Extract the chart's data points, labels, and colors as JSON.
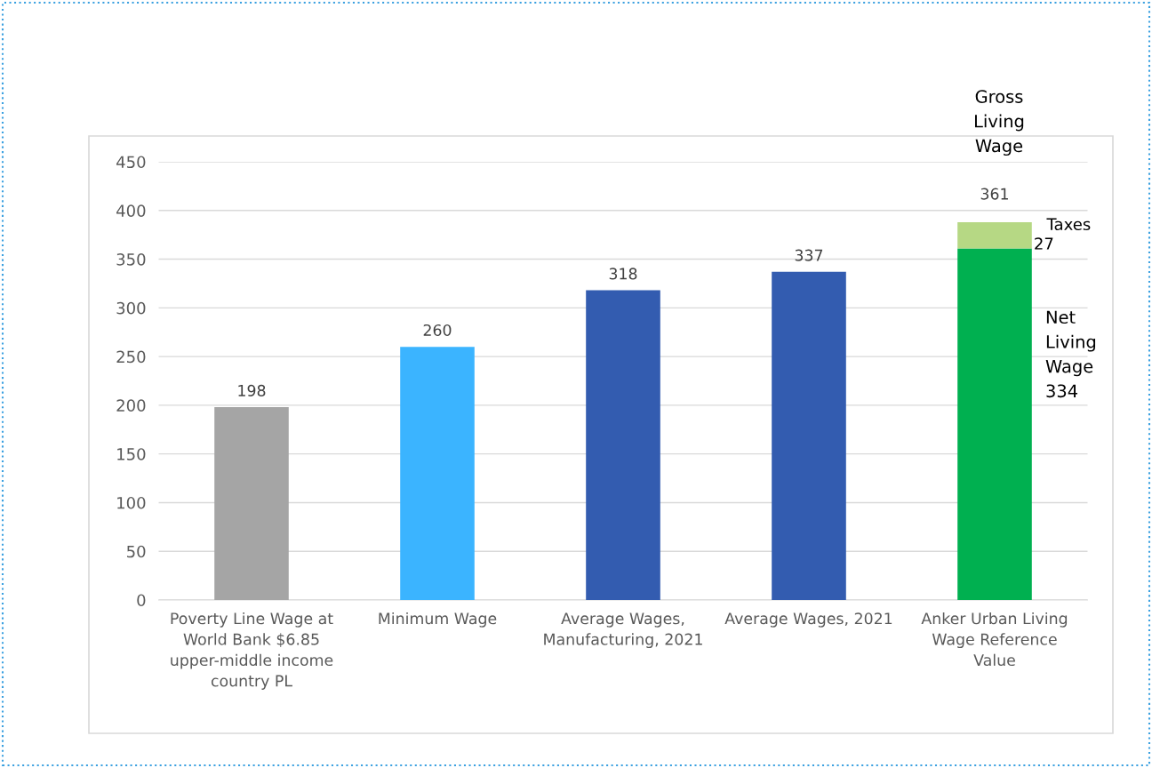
{
  "chart_data": {
    "type": "bar",
    "stacked": true,
    "categories": [
      "Poverty Line Wage at\nWorld Bank $6.85\nupper-middle income\ncountry PL",
      "Minimum Wage",
      "Average Wages,\nManufacturing, 2021",
      "Average Wages, 2021",
      "Anker Urban Living\nWage Reference\nValue"
    ],
    "series": [
      {
        "colors": [
          "#a5a5a5",
          "#3bb4ff",
          "#335cb0",
          "#335cb0",
          "#00b050"
        ],
        "values": [
          198,
          260,
          318,
          337,
          361
        ],
        "value_labels": [
          "198",
          "260",
          "318",
          "337",
          "361"
        ]
      },
      {
        "name": "Taxes",
        "color": "#b6d884",
        "values": [
          null,
          null,
          null,
          null,
          27
        ],
        "value_labels": [
          null,
          null,
          null,
          null,
          "27"
        ]
      }
    ],
    "ylim": [
      0,
      450
    ],
    "yticks": [
      0,
      50,
      100,
      150,
      200,
      250,
      300,
      350,
      400,
      450
    ],
    "grid": "y",
    "annotations": [
      "Gross\nLiving\nWage",
      "Net\nLiving\nWage\n334"
    ]
  }
}
